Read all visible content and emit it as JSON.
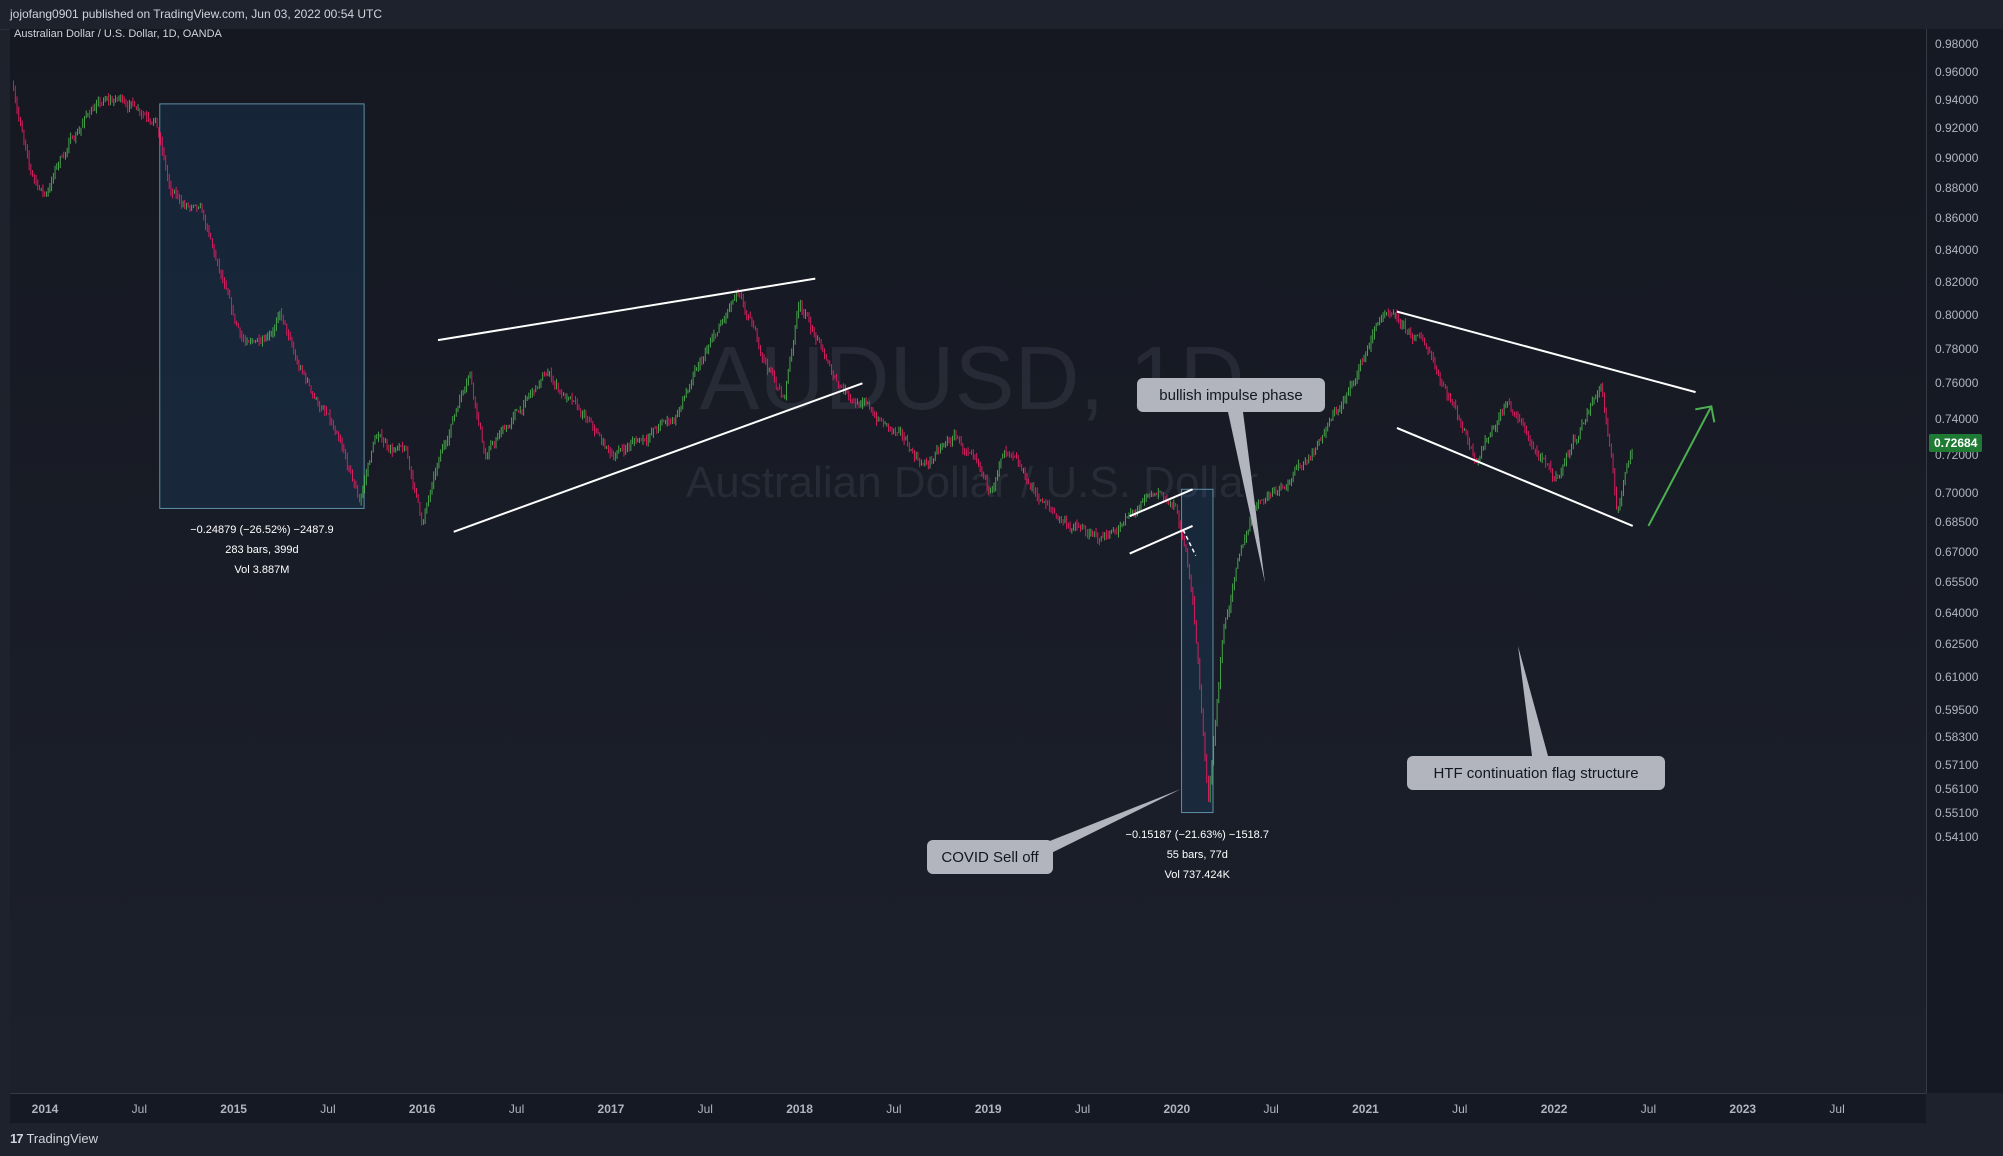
{
  "header": {
    "publisher": "jojofang0901 published on TradingView.com, Jun 03, 2022 00:54 UTC"
  },
  "chart": {
    "legend": "Australian Dollar / U.S. Dollar, 1D, OANDA",
    "watermark_symbol": "AUDUSD, 1D",
    "watermark_name": "Australian Dollar / U.S. Dollar"
  },
  "footer": {
    "brand_logo": "17",
    "brand_name": "TradingView"
  },
  "chart_data": {
    "type": "candlestick",
    "symbol": "AUDUSD",
    "timeframe": "1D",
    "source": "OANDA",
    "y_scale": "log",
    "ylim": [
      0.535,
      0.985
    ],
    "current_price": "0.72684",
    "price_tag_color": "#1f7a34",
    "up_color": "#4caf50",
    "down_color": "#e91e63",
    "y_ticks": [
      "0.98000",
      "0.96000",
      "0.94000",
      "0.92000",
      "0.90000",
      "0.88000",
      "0.86000",
      "0.84000",
      "0.82000",
      "0.80000",
      "0.78000",
      "0.76000",
      "0.74000",
      "0.72000",
      "0.70000",
      "0.68500",
      "0.67000",
      "0.65500",
      "0.64000",
      "0.62500",
      "0.61000",
      "0.59500",
      "0.58300",
      "0.57100",
      "0.56100",
      "0.55100",
      "0.54100"
    ],
    "x_ticks": [
      "2014",
      "Jul",
      "2015",
      "Jul",
      "2016",
      "Jul",
      "2017",
      "Jul",
      "2018",
      "Jul",
      "2019",
      "Jul",
      "2020",
      "Jul",
      "2021",
      "Jul",
      "2022",
      "Jul",
      "2023",
      "Jul"
    ],
    "x_tick_dates": [
      "2014-01",
      "2014-07",
      "2015-01",
      "2015-07",
      "2016-01",
      "2016-07",
      "2017-01",
      "2017-07",
      "2018-01",
      "2018-07",
      "2019-01",
      "2019-07",
      "2020-01",
      "2020-07",
      "2021-01",
      "2021-07",
      "2022-01",
      "2022-07",
      "2023-01",
      "2023-07"
    ],
    "price_path": [
      [
        "2013-11",
        0.95
      ],
      [
        "2013-12",
        0.89
      ],
      [
        "2014-01",
        0.875
      ],
      [
        "2014-02",
        0.9
      ],
      [
        "2014-04",
        0.935
      ],
      [
        "2014-06",
        0.94
      ],
      [
        "2014-08",
        0.93
      ],
      [
        "2014-09",
        0.875
      ],
      [
        "2014-11",
        0.86
      ],
      [
        "2015-01",
        0.795
      ],
      [
        "2015-02",
        0.78
      ],
      [
        "2015-04",
        0.8
      ],
      [
        "2015-05",
        0.77
      ],
      [
        "2015-07",
        0.74
      ],
      [
        "2015-09",
        0.695
      ],
      [
        "2015-10",
        0.73
      ],
      [
        "2015-12",
        0.72
      ],
      [
        "2016-01",
        0.685
      ],
      [
        "2016-04",
        0.77
      ],
      [
        "2016-05",
        0.72
      ],
      [
        "2016-09",
        0.765
      ],
      [
        "2017-01",
        0.72
      ],
      [
        "2017-05",
        0.74
      ],
      [
        "2017-09",
        0.81
      ],
      [
        "2017-12",
        0.75
      ],
      [
        "2018-01",
        0.81
      ],
      [
        "2018-03",
        0.765
      ],
      [
        "2018-06",
        0.74
      ],
      [
        "2018-09",
        0.715
      ],
      [
        "2018-11",
        0.73
      ],
      [
        "2019-01",
        0.7
      ],
      [
        "2019-02",
        0.72
      ],
      [
        "2019-05",
        0.69
      ],
      [
        "2019-08",
        0.675
      ],
      [
        "2019-12",
        0.7
      ],
      [
        "2020-01",
        0.69
      ],
      [
        "2020-02",
        0.65
      ],
      [
        "2020-03",
        0.555
      ],
      [
        "2020-04",
        0.635
      ],
      [
        "2020-06",
        0.695
      ],
      [
        "2020-09",
        0.715
      ],
      [
        "2020-12",
        0.755
      ],
      [
        "2021-02",
        0.8
      ],
      [
        "2021-05",
        0.78
      ],
      [
        "2021-08",
        0.72
      ],
      [
        "2021-10",
        0.75
      ],
      [
        "2022-01",
        0.705
      ],
      [
        "2022-04",
        0.76
      ],
      [
        "2022-05",
        0.69
      ],
      [
        "2022-06",
        0.727
      ]
    ],
    "measurements": [
      {
        "start": "2014-08",
        "end": "2015-09",
        "price_high": 0.937,
        "price_low": 0.692,
        "lines": [
          "−0.24879 (−26.52%) −2487.9",
          "283 bars, 399d",
          "Vol 3.887M"
        ]
      },
      {
        "start": "2020-01",
        "end": "2020-03",
        "price_high": 0.702,
        "price_low": 0.551,
        "lines": [
          "−0.15187 (−21.63%) −1518.7",
          "55 bars, 77d",
          "Vol 737.424K"
        ]
      }
    ],
    "annotations": [
      {
        "text": "bullish impulse phase"
      },
      {
        "text": "COVID Sell off"
      },
      {
        "text": "HTF continuation flag structure"
      }
    ]
  }
}
